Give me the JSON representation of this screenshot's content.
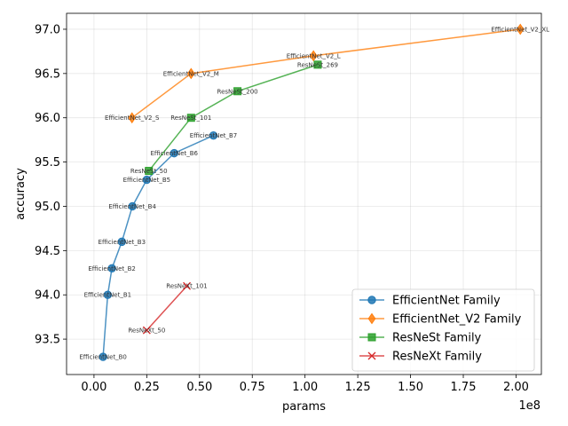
{
  "chart_data": {
    "type": "line",
    "xlabel": "params",
    "ylabel": "accuracy",
    "x_offset_label": "1e8",
    "xlim": [
      -13000000,
      212000000
    ],
    "ylim": [
      93.1,
      97.18
    ],
    "x_ticks": [
      0,
      25000000,
      50000000,
      75000000,
      100000000,
      125000000,
      150000000,
      175000000,
      200000000
    ],
    "x_tick_labels": [
      "0.00",
      "0.25",
      "0.50",
      "0.75",
      "1.00",
      "1.25",
      "1.50",
      "1.75",
      "2.00"
    ],
    "y_ticks": [
      93.5,
      94.0,
      94.5,
      95.0,
      95.5,
      96.0,
      96.5,
      97.0
    ],
    "y_tick_labels": [
      "93.5",
      "94.0",
      "94.5",
      "95.0",
      "95.5",
      "96.0",
      "96.5",
      "97.0"
    ],
    "grid": true,
    "legend_position": "lower-right",
    "series": [
      {
        "name": "EfficientNet Family",
        "color": "#1f77b4",
        "marker": "circle",
        "points": [
          {
            "label": "EfficientNet_B0",
            "x": 4300000,
            "y": 93.3
          },
          {
            "label": "EfficientNet_B1",
            "x": 6500000,
            "y": 94.0
          },
          {
            "label": "EfficientNet_B2",
            "x": 8500000,
            "y": 94.3
          },
          {
            "label": "EfficientNet_B3",
            "x": 13200000,
            "y": 94.6
          },
          {
            "label": "EfficientNet_B4",
            "x": 18200000,
            "y": 95.0
          },
          {
            "label": "EfficientNet_B5",
            "x": 25000000,
            "y": 95.3
          },
          {
            "label": "EfficientNet_B6",
            "x": 38000000,
            "y": 95.6
          },
          {
            "label": "EfficientNet_B7",
            "x": 56600000,
            "y": 95.8
          }
        ]
      },
      {
        "name": "EfficientNet_V2 Family",
        "color": "#ff7f0e",
        "marker": "diamond",
        "points": [
          {
            "label": "EfficientNet_V2_S",
            "x": 18000000,
            "y": 96.0
          },
          {
            "label": "EfficientNet_V2_M",
            "x": 46000000,
            "y": 96.5
          },
          {
            "label": "EfficientNet_V2_L",
            "x": 104000000,
            "y": 96.7
          },
          {
            "label": "EfficientNet_V2_XL",
            "x": 202000000,
            "y": 97.0
          }
        ]
      },
      {
        "name": "ResNeSt Family",
        "color": "#2ca02c",
        "marker": "square",
        "points": [
          {
            "label": "ResNeSt_50",
            "x": 26000000,
            "y": 95.4
          },
          {
            "label": "ResNeSt_101",
            "x": 46000000,
            "y": 96.0
          },
          {
            "label": "ResNeSt_200",
            "x": 68000000,
            "y": 96.3
          },
          {
            "label": "ResNeSt_269",
            "x": 106000000,
            "y": 96.6
          }
        ]
      },
      {
        "name": "ResNeXt Family",
        "color": "#d62728",
        "marker": "x",
        "points": [
          {
            "label": "ResNeXt_50",
            "x": 25000000,
            "y": 93.6
          },
          {
            "label": "ResNeXt_101",
            "x": 44000000,
            "y": 94.1
          }
        ]
      }
    ]
  }
}
